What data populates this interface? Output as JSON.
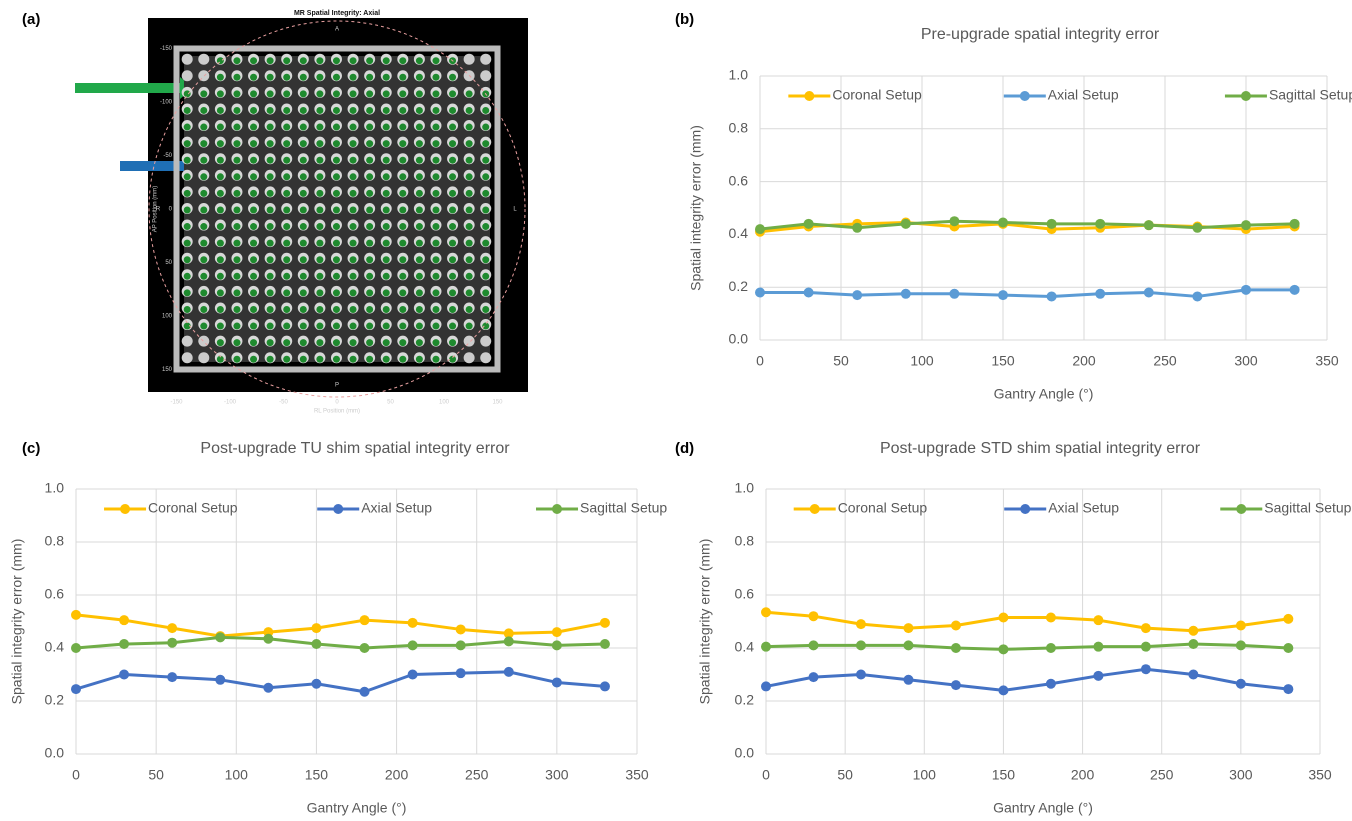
{
  "chart_data": [
    {
      "type": "image",
      "panel_label": "(a)",
      "title": "MR Spatial Integrity: Axial",
      "orientation_labels": {
        "top": "A",
        "bottom": "P",
        "left": "R",
        "right": "L"
      },
      "xlabel": "RL Position (mm)",
      "ylabel": "AP Position (mm)",
      "xlim": [
        -170,
        170
      ],
      "ylim": [
        -170,
        170
      ],
      "xticks": [
        -150,
        -100,
        -50,
        0,
        50,
        100,
        150
      ],
      "yticks": [
        -150,
        -100,
        -50,
        0,
        50,
        100,
        150
      ]
    },
    {
      "type": "line",
      "panel_label": "(b)",
      "title": "Pre-upgrade spatial integrity error",
      "xlabel": "Gantry Angle (°)",
      "ylabel": "Spatial integrity error (mm)",
      "x": [
        0,
        30,
        60,
        90,
        120,
        150,
        180,
        210,
        240,
        270,
        300,
        330
      ],
      "series": [
        {
          "name": "Coronal Setup",
          "color": "#FFC000",
          "values": [
            0.41,
            0.43,
            0.44,
            0.445,
            0.43,
            0.44,
            0.42,
            0.425,
            0.435,
            0.43,
            0.42,
            0.43
          ]
        },
        {
          "name": "Axial Setup",
          "color": "#5B9BD5",
          "values": [
            0.18,
            0.18,
            0.17,
            0.175,
            0.175,
            0.17,
            0.165,
            0.175,
            0.18,
            0.165,
            0.19,
            0.19
          ]
        },
        {
          "name": "Sagittal Setup",
          "color": "#70AD47",
          "values": [
            0.42,
            0.44,
            0.425,
            0.44,
            0.45,
            0.445,
            0.44,
            0.44,
            0.435,
            0.425,
            0.435,
            0.44
          ]
        }
      ],
      "xlim": [
        0,
        350
      ],
      "xticks": [
        0,
        50,
        100,
        150,
        200,
        250,
        300,
        350
      ],
      "ylim": [
        0,
        1
      ],
      "yticks": [
        {
          "value": 0,
          "label": "0.0"
        },
        0.2,
        0.4,
        0.6,
        0.8,
        {
          "value": 1,
          "label": "1.0"
        }
      ],
      "grid": true,
      "legend": "top"
    },
    {
      "type": "line",
      "panel_label": "(c)",
      "title": "Post-upgrade TU shim spatial integrity error",
      "xlabel": "Gantry Angle (°)",
      "ylabel": "Spatial integrity error (mm)",
      "x": [
        0,
        30,
        60,
        90,
        120,
        150,
        180,
        210,
        240,
        270,
        300,
        330
      ],
      "series": [
        {
          "name": "Coronal Setup",
          "color": "#FFC000",
          "values": [
            0.525,
            0.505,
            0.475,
            0.445,
            0.46,
            0.475,
            0.505,
            0.495,
            0.47,
            0.455,
            0.46,
            0.495
          ]
        },
        {
          "name": "Axial Setup",
          "color": "#4472C4",
          "values": [
            0.245,
            0.3,
            0.29,
            0.28,
            0.25,
            0.265,
            0.235,
            0.3,
            0.305,
            0.31,
            0.27,
            0.255
          ]
        },
        {
          "name": "Sagittal Setup",
          "color": "#70AD47",
          "values": [
            0.4,
            0.415,
            0.42,
            0.44,
            0.435,
            0.415,
            0.4,
            0.41,
            0.41,
            0.425,
            0.41,
            0.415
          ]
        }
      ],
      "xlim": [
        0,
        350
      ],
      "xticks": [
        0,
        50,
        100,
        150,
        200,
        250,
        300,
        350
      ],
      "ylim": [
        0,
        1
      ],
      "yticks": [
        {
          "value": 0,
          "label": "0.0"
        },
        0.2,
        0.4,
        0.6,
        0.8,
        {
          "value": 1,
          "label": "1.0"
        }
      ],
      "grid": true,
      "legend": "top"
    },
    {
      "type": "line",
      "panel_label": "(d)",
      "title": "Post-upgrade STD shim spatial integrity error",
      "xlabel": "Gantry Angle (°)",
      "ylabel": "Spatial integrity error (mm)",
      "x": [
        0,
        30,
        60,
        90,
        120,
        150,
        180,
        210,
        240,
        270,
        300,
        330
      ],
      "series": [
        {
          "name": "Coronal Setup",
          "color": "#FFC000",
          "values": [
            0.535,
            0.52,
            0.49,
            0.475,
            0.485,
            0.515,
            0.515,
            0.505,
            0.475,
            0.465,
            0.485,
            0.51
          ]
        },
        {
          "name": "Axial Setup",
          "color": "#4472C4",
          "values": [
            0.255,
            0.29,
            0.3,
            0.28,
            0.26,
            0.24,
            0.265,
            0.295,
            0.32,
            0.3,
            0.265,
            0.245
          ]
        },
        {
          "name": "Sagittal Setup",
          "color": "#70AD47",
          "values": [
            0.405,
            0.41,
            0.41,
            0.41,
            0.4,
            0.395,
            0.4,
            0.405,
            0.405,
            0.415,
            0.41,
            0.4
          ]
        }
      ],
      "xlim": [
        0,
        350
      ],
      "xticks": [
        0,
        50,
        100,
        150,
        200,
        250,
        300,
        350
      ],
      "ylim": [
        0,
        1
      ],
      "yticks": [
        {
          "value": 0,
          "label": "0.0"
        },
        0.2,
        0.4,
        0.6,
        0.8,
        {
          "value": 1,
          "label": "1.0"
        }
      ],
      "grid": true,
      "legend": "top"
    }
  ]
}
